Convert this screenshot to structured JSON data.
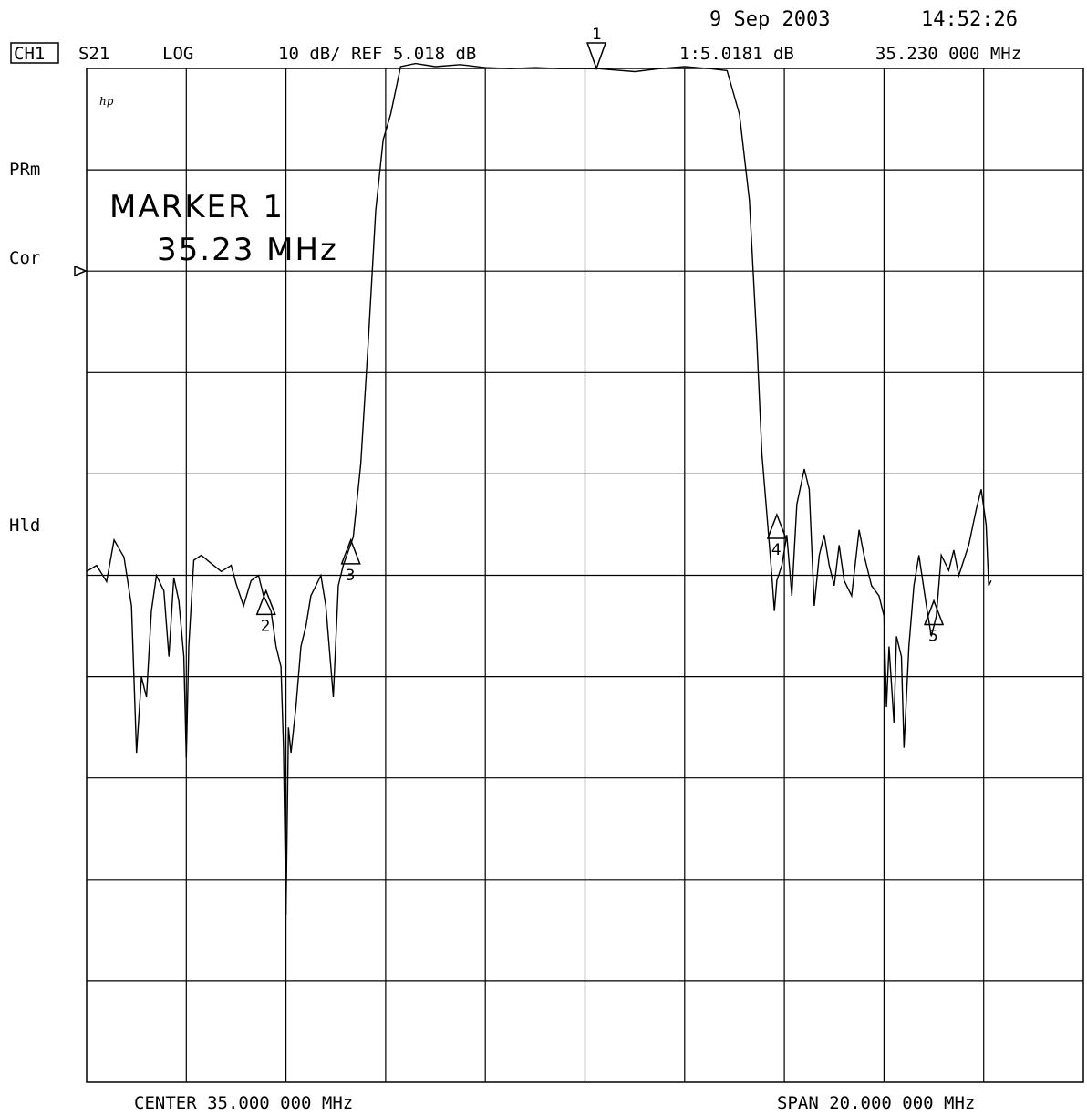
{
  "header": {
    "date": "9 Sep 2003",
    "time": "14:52:26",
    "channel": "CH1",
    "measurement": "S21",
    "format": "LOG",
    "scale": "10 dB/ REF 5.018 dB",
    "marker_readout": "1:5.0181 dB",
    "marker_freq": "35.230 000 MHz"
  },
  "annotations": {
    "logo": "hp",
    "prm": "PRm",
    "cor": "Cor",
    "hld": "Hld",
    "marker_title": "MARKER 1",
    "marker_value": "35.23 MHz"
  },
  "footer": {
    "center": "CENTER 35.000 000 MHz",
    "span": "SPAN 20.000 000 MHz"
  },
  "chart_data": {
    "type": "line",
    "xlabel": "",
    "ylabel": "",
    "x_unit": "MHz",
    "y_unit": "dB",
    "xlim": [
      25.0,
      45.0
    ],
    "ylim": [
      -94.982,
      5.018
    ],
    "reference_level_db": 5.018,
    "scale_db_per_div": 10,
    "grid": true,
    "series": [
      {
        "values": [
          [
            25.0,
            -44.6
          ],
          [
            25.2,
            -44.0
          ],
          [
            25.4,
            -45.6
          ],
          [
            25.55,
            -41.5
          ],
          [
            25.75,
            -43.2
          ],
          [
            25.9,
            -48.0
          ],
          [
            26.0,
            -62.5
          ],
          [
            26.1,
            -55.0
          ],
          [
            26.2,
            -57.0
          ],
          [
            26.3,
            -48.5
          ],
          [
            26.4,
            -45.0
          ],
          [
            26.55,
            -46.5
          ],
          [
            26.65,
            -53.0
          ],
          [
            26.75,
            -45.2
          ],
          [
            26.85,
            -47.5
          ],
          [
            26.95,
            -53.0
          ],
          [
            27.0,
            -63.0
          ],
          [
            27.05,
            -52.0
          ],
          [
            27.15,
            -43.5
          ],
          [
            27.3,
            -43.0
          ],
          [
            27.5,
            -43.8
          ],
          [
            27.7,
            -44.6
          ],
          [
            27.9,
            -44.0
          ],
          [
            28.0,
            -45.8
          ],
          [
            28.15,
            -48.0
          ],
          [
            28.3,
            -45.5
          ],
          [
            28.45,
            -45.0
          ],
          [
            28.55,
            -47.0
          ],
          [
            28.7,
            -48.5
          ],
          [
            28.8,
            -52.0
          ],
          [
            28.9,
            -54.0
          ],
          [
            28.95,
            -62.0
          ],
          [
            29.0,
            -78.5
          ],
          [
            29.05,
            -60.0
          ],
          [
            29.1,
            -62.5
          ],
          [
            29.2,
            -58.0
          ],
          [
            29.3,
            -52.0
          ],
          [
            29.4,
            -50.0
          ],
          [
            29.5,
            -47.0
          ],
          [
            29.6,
            -46.0
          ],
          [
            29.7,
            -45.0
          ],
          [
            29.8,
            -48.0
          ],
          [
            29.9,
            -54.0
          ],
          [
            29.95,
            -57.0
          ],
          [
            30.05,
            -46.0
          ],
          [
            30.15,
            -44.0
          ],
          [
            30.35,
            -41.2
          ],
          [
            30.5,
            -34.0
          ],
          [
            30.65,
            -22.0
          ],
          [
            30.8,
            -9.0
          ],
          [
            30.95,
            -2.0
          ],
          [
            31.1,
            0.5
          ],
          [
            31.3,
            5.2
          ],
          [
            31.6,
            5.5
          ],
          [
            32.0,
            5.2
          ],
          [
            32.5,
            5.4
          ],
          [
            33.0,
            5.1
          ],
          [
            33.5,
            5.0
          ],
          [
            34.0,
            5.1
          ],
          [
            34.5,
            5.0
          ],
          [
            35.0,
            5.0
          ],
          [
            35.23,
            5.018
          ],
          [
            35.5,
            4.9
          ],
          [
            36.0,
            4.7
          ],
          [
            36.5,
            5.0
          ],
          [
            37.0,
            5.2
          ],
          [
            37.5,
            5.0
          ],
          [
            37.85,
            4.8
          ],
          [
            38.1,
            0.5
          ],
          [
            38.3,
            -8.0
          ],
          [
            38.45,
            -22.0
          ],
          [
            38.55,
            -33.0
          ],
          [
            38.65,
            -39.0
          ],
          [
            38.75,
            -45.0
          ],
          [
            38.8,
            -48.5
          ],
          [
            38.85,
            -45.5
          ],
          [
            38.95,
            -44.0
          ],
          [
            39.05,
            -41.0
          ],
          [
            39.15,
            -47.0
          ],
          [
            39.25,
            -38.0
          ],
          [
            39.4,
            -34.5
          ],
          [
            39.5,
            -36.5
          ],
          [
            39.6,
            -48.0
          ],
          [
            39.7,
            -43.0
          ],
          [
            39.8,
            -41.0
          ],
          [
            39.9,
            -44.0
          ],
          [
            40.0,
            -46.0
          ],
          [
            40.1,
            -42.0
          ],
          [
            40.2,
            -45.5
          ],
          [
            40.35,
            -47.0
          ],
          [
            40.5,
            -40.5
          ],
          [
            40.6,
            -43.0
          ],
          [
            40.75,
            -46.0
          ],
          [
            40.9,
            -47.0
          ],
          [
            41.0,
            -49.0
          ],
          [
            41.05,
            -58.0
          ],
          [
            41.1,
            -52.0
          ],
          [
            41.2,
            -59.5
          ],
          [
            41.25,
            -51.0
          ],
          [
            41.35,
            -53.0
          ],
          [
            41.4,
            -62.0
          ],
          [
            41.5,
            -52.0
          ],
          [
            41.6,
            -46.0
          ],
          [
            41.7,
            -43.0
          ],
          [
            41.85,
            -48.0
          ],
          [
            41.95,
            -51.0
          ],
          [
            42.05,
            -49.0
          ],
          [
            42.15,
            -43.0
          ],
          [
            42.3,
            -44.5
          ],
          [
            42.4,
            -42.5
          ],
          [
            42.5,
            -45.0
          ],
          [
            42.7,
            -42.0
          ],
          [
            42.85,
            -38.5
          ],
          [
            42.95,
            -36.5
          ],
          [
            43.05,
            -40.0
          ],
          [
            43.1,
            -46.0
          ],
          [
            43.15,
            -45.5
          ]
        ]
      }
    ],
    "markers": [
      {
        "id": "1",
        "x": 35.23,
        "y": 5.018,
        "direction": "down"
      },
      {
        "id": "2",
        "x": 28.6,
        "y": -46.5,
        "direction": "up"
      },
      {
        "id": "3",
        "x": 30.3,
        "y": -41.5,
        "direction": "up"
      },
      {
        "id": "4",
        "x": 38.85,
        "y": -39.0,
        "direction": "up"
      },
      {
        "id": "5",
        "x": 42.0,
        "y": -47.5,
        "direction": "up"
      }
    ]
  }
}
